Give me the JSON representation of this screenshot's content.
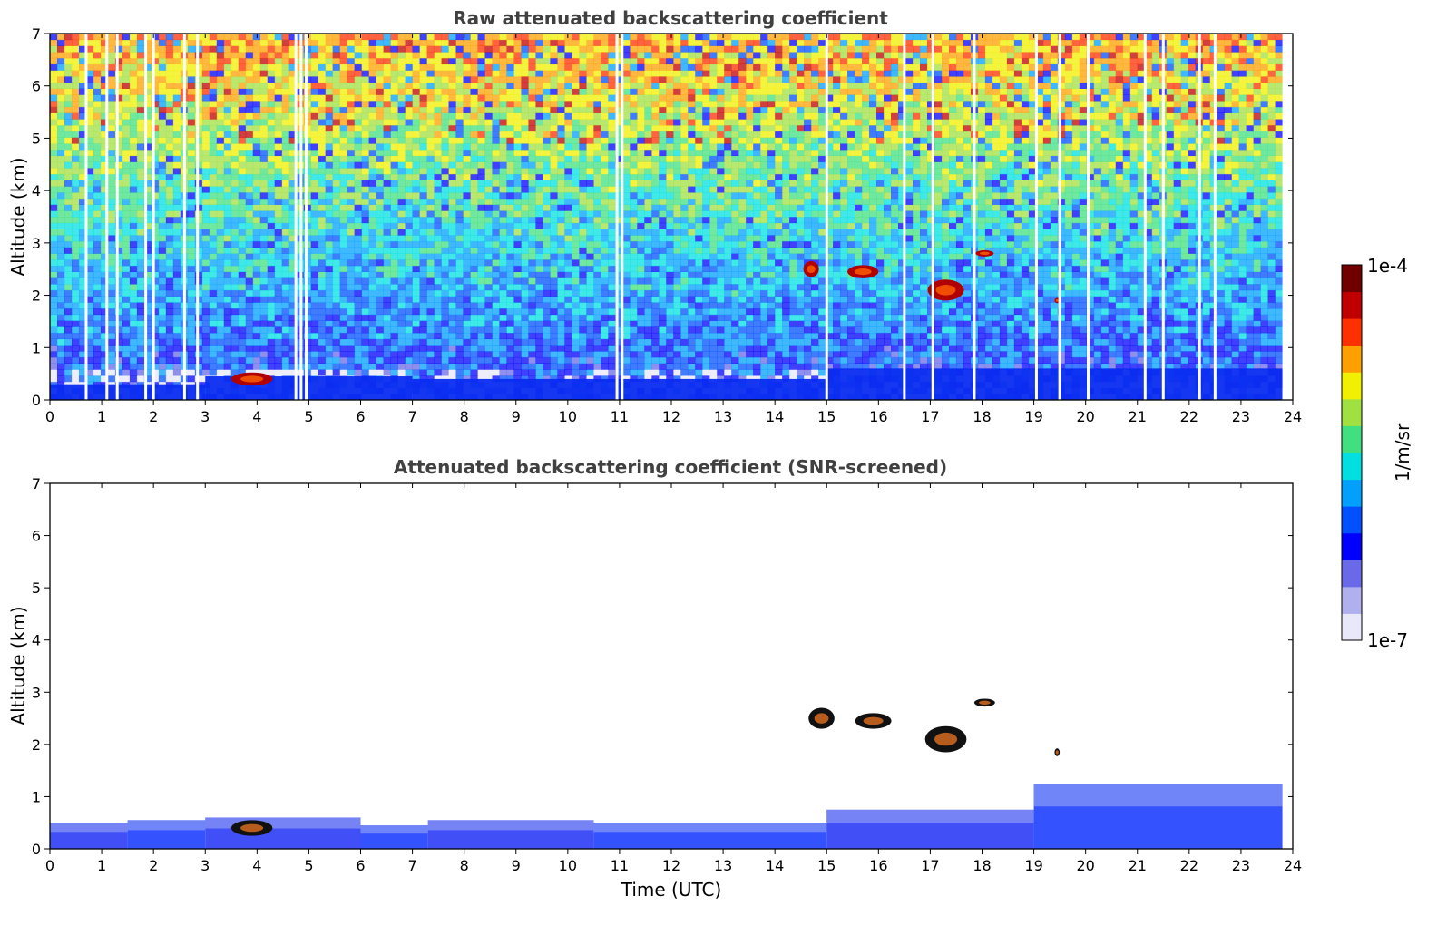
{
  "chart_data": [
    {
      "type": "heatmap",
      "title": "Raw attenuated backscattering coefficient",
      "xlabel": "",
      "ylabel": "Altitude (km)",
      "xlim": [
        0,
        24
      ],
      "ylim": [
        0,
        7
      ],
      "xticks": [
        0,
        1,
        2,
        3,
        4,
        5,
        6,
        7,
        8,
        9,
        10,
        11,
        12,
        13,
        14,
        15,
        16,
        17,
        18,
        19,
        20,
        21,
        22,
        23,
        24
      ],
      "yticks": [
        0,
        1,
        2,
        3,
        4,
        5,
        6,
        7
      ],
      "color_scale": "log",
      "noise_gradient": "blue near surface to yellow/red aloft",
      "data_gaps_hours": [
        0.7,
        1.1,
        1.3,
        1.85,
        2.0,
        2.6,
        2.85,
        4.75,
        4.85,
        4.95,
        10.95,
        11.05,
        15.0,
        16.5,
        17.05,
        17.85,
        19.05,
        19.5,
        20.05,
        21.15,
        21.5,
        22.2,
        22.5
      ],
      "boundary_layer": [
        {
          "t_start": 0,
          "t_end": 3,
          "top_km": 0.3
        },
        {
          "t_start": 3,
          "t_end": 7,
          "top_km": 0.45
        },
        {
          "t_start": 7,
          "t_end": 15,
          "top_km": 0.4
        },
        {
          "t_start": 15,
          "t_end": 23.8,
          "top_km": 0.6
        }
      ],
      "cloud_features": [
        {
          "t": 3.9,
          "alt_km": 0.4,
          "width_h": 0.8,
          "height_km": 0.25
        },
        {
          "t": 14.7,
          "alt_km": 2.5,
          "width_h": 0.3,
          "height_km": 0.3
        },
        {
          "t": 15.7,
          "alt_km": 2.45,
          "width_h": 0.6,
          "height_km": 0.25
        },
        {
          "t": 17.3,
          "alt_km": 2.1,
          "width_h": 0.7,
          "height_km": 0.4
        },
        {
          "t": 18.05,
          "alt_km": 2.8,
          "width_h": 0.35,
          "height_km": 0.12
        },
        {
          "t": 19.45,
          "alt_km": 1.9,
          "width_h": 0.1,
          "height_km": 0.1
        }
      ]
    },
    {
      "type": "heatmap",
      "title": "Attenuated backscattering coefficient (SNR-screened)",
      "xlabel": "Time (UTC)",
      "ylabel": "Altitude (km)",
      "xlim": [
        0,
        24
      ],
      "ylim": [
        0,
        7
      ],
      "xticks": [
        0,
        1,
        2,
        3,
        4,
        5,
        6,
        7,
        8,
        9,
        10,
        11,
        12,
        13,
        14,
        15,
        16,
        17,
        18,
        19,
        20,
        21,
        22,
        23,
        24
      ],
      "yticks": [
        0,
        1,
        2,
        3,
        4,
        5,
        6,
        7
      ],
      "color_scale": "log",
      "boundary_layer": [
        {
          "t_start": 0,
          "t_end": 1.5,
          "top_km": 0.5
        },
        {
          "t_start": 1.5,
          "t_end": 3,
          "top_km": 0.55
        },
        {
          "t_start": 3,
          "t_end": 6,
          "top_km": 0.6
        },
        {
          "t_start": 6,
          "t_end": 7.3,
          "top_km": 0.45
        },
        {
          "t_start": 7.3,
          "t_end": 10.5,
          "top_km": 0.55
        },
        {
          "t_start": 10.5,
          "t_end": 15,
          "top_km": 0.5
        },
        {
          "t_start": 15,
          "t_end": 19,
          "top_km": 0.75
        },
        {
          "t_start": 19,
          "t_end": 23.8,
          "top_km": 1.25
        }
      ],
      "cloud_features": [
        {
          "t": 3.9,
          "alt_km": 0.4,
          "width_h": 0.8,
          "height_km": 0.3
        },
        {
          "t": 14.9,
          "alt_km": 2.5,
          "width_h": 0.5,
          "height_km": 0.4
        },
        {
          "t": 15.9,
          "alt_km": 2.45,
          "width_h": 0.7,
          "height_km": 0.3
        },
        {
          "t": 17.3,
          "alt_km": 2.1,
          "width_h": 0.8,
          "height_km": 0.5
        },
        {
          "t": 18.05,
          "alt_km": 2.8,
          "width_h": 0.4,
          "height_km": 0.15
        },
        {
          "t": 19.45,
          "alt_km": 1.85,
          "width_h": 0.1,
          "height_km": 0.15
        }
      ]
    }
  ],
  "colorbar": {
    "max_label": "1e-4",
    "min_label": "1e-7",
    "units_label": "1/m/sr",
    "colormap": [
      "#e8e8f8",
      "#b0b0ee",
      "#6a6ae8",
      "#0000ff",
      "#0050ff",
      "#00a0ff",
      "#00e0e0",
      "#40e080",
      "#a0e040",
      "#f0f000",
      "#ffa000",
      "#ff3000",
      "#c00000",
      "#700000"
    ]
  }
}
